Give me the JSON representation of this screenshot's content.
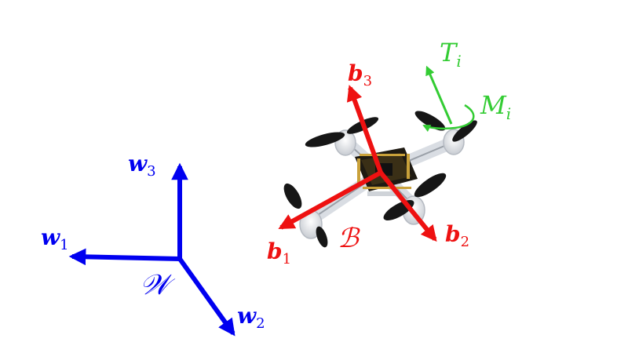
{
  "world_frame": {
    "name": "𝒲",
    "axes": [
      {
        "symbol": "w",
        "index": "1"
      },
      {
        "symbol": "w",
        "index": "2"
      },
      {
        "symbol": "w",
        "index": "3"
      }
    ],
    "color": "#0000f0"
  },
  "body_frame": {
    "name": "ℬ",
    "axes": [
      {
        "symbol": "b",
        "index": "1"
      },
      {
        "symbol": "b",
        "index": "2"
      },
      {
        "symbol": "b",
        "index": "3"
      }
    ],
    "color": "#ee1111"
  },
  "rotor": {
    "thrust": {
      "symbol": "T",
      "index": "i"
    },
    "moment": {
      "symbol": "M",
      "index": "i"
    },
    "color": "#33cc33"
  }
}
